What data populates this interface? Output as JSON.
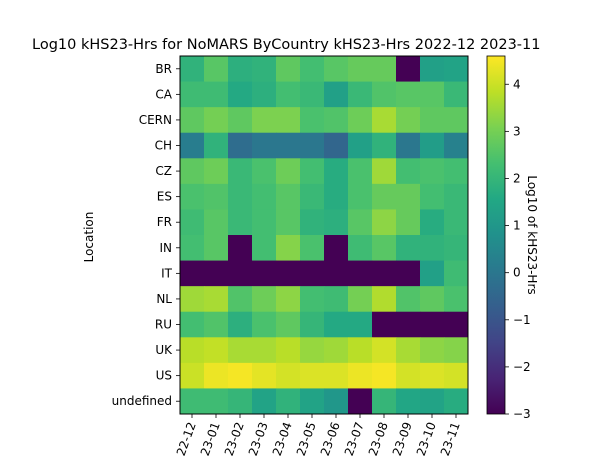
{
  "chart_data": {
    "type": "heatmap",
    "title": "Log10 kHS23-Hrs for NoMARS ByCountry kHS23-Hrs 2022-12 2023-11",
    "xlabel": "",
    "ylabel": "Location",
    "colorbar_label": "Log10 of kHS23-Hrs",
    "colormap": "viridis",
    "vmin": -3,
    "vmax": 4.6,
    "colorbar_ticks": [
      -3,
      -2,
      -1,
      0,
      1,
      2,
      3,
      4
    ],
    "x_categories": [
      "22-12",
      "23-01",
      "23-02",
      "23-03",
      "23-04",
      "23-05",
      "23-06",
      "23-07",
      "23-08",
      "23-09",
      "23-10",
      "23-11"
    ],
    "y_categories": [
      "BR",
      "CA",
      "CERN",
      "CH",
      "CZ",
      "ES",
      "FR",
      "IN",
      "IT",
      "NL",
      "RU",
      "UK",
      "US",
      "undefined"
    ],
    "values": [
      [
        1.9,
        2.6,
        1.8,
        1.9,
        2.7,
        2.3,
        2.6,
        2.8,
        2.8,
        -3.0,
        1.3,
        1.4
      ],
      [
        2.2,
        2.2,
        1.6,
        1.8,
        2.3,
        2.1,
        1.3,
        2.1,
        2.5,
        2.6,
        2.6,
        2.1
      ],
      [
        2.7,
        3.0,
        2.7,
        3.1,
        3.1,
        2.4,
        2.5,
        2.9,
        3.6,
        3.0,
        2.7,
        2.7
      ],
      [
        0.2,
        1.9,
        -0.3,
        0.0,
        0.0,
        0.0,
        -0.5,
        1.3,
        1.9,
        0.0,
        1.2,
        0.3
      ],
      [
        2.7,
        2.9,
        2.1,
        2.4,
        2.9,
        2.3,
        1.7,
        2.4,
        3.5,
        2.3,
        2.4,
        2.3
      ],
      [
        2.4,
        2.5,
        2.1,
        2.3,
        2.6,
        2.1,
        1.7,
        2.4,
        2.8,
        2.8,
        2.3,
        2.1
      ],
      [
        2.2,
        2.6,
        2.1,
        2.3,
        2.6,
        1.9,
        1.8,
        2.6,
        3.3,
        2.8,
        1.7,
        2.1
      ],
      [
        2.3,
        2.6,
        -3.0,
        2.3,
        3.2,
        2.4,
        -3.0,
        2.2,
        2.6,
        1.9,
        1.9,
        2.0
      ],
      [
        -3.0,
        -3.0,
        -3.0,
        -3.0,
        -3.0,
        -3.0,
        -3.0,
        -3.0,
        -3.0,
        -3.0,
        1.3,
        2.2
      ],
      [
        3.5,
        3.6,
        2.5,
        2.9,
        3.3,
        2.3,
        2.2,
        3.0,
        3.7,
        2.5,
        2.7,
        2.4
      ],
      [
        2.3,
        2.5,
        1.8,
        2.4,
        2.7,
        2.0,
        1.6,
        1.6,
        -3.0,
        -3.0,
        -3.0,
        -3.0
      ],
      [
        3.8,
        3.9,
        3.6,
        3.6,
        3.8,
        3.4,
        3.5,
        3.8,
        4.1,
        3.6,
        3.3,
        3.2
      ],
      [
        4.0,
        4.4,
        4.5,
        4.3,
        4.1,
        4.2,
        4.2,
        4.4,
        4.5,
        4.1,
        4.2,
        4.1
      ],
      [
        2.2,
        2.2,
        2.0,
        1.4,
        1.9,
        1.4,
        1.0,
        -3.0,
        2.0,
        1.5,
        1.4,
        1.7
      ]
    ]
  }
}
